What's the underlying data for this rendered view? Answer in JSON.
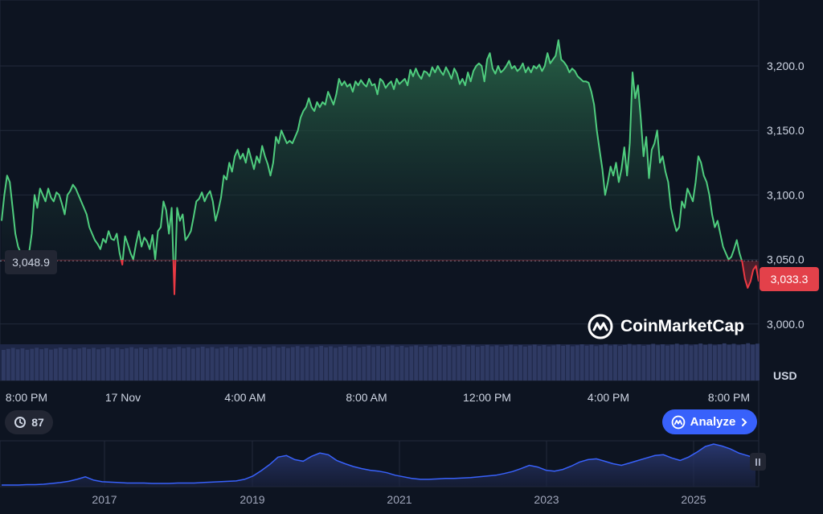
{
  "chart_data": [
    {
      "type": "line",
      "description_axes": "main intraday price",
      "y_axis": {
        "ticks": [
          "3,000.0",
          "3,050.0",
          "3,100.0",
          "3,150.0",
          "3,200.0"
        ],
        "values": [
          3000,
          3050,
          3100,
          3150,
          3200
        ],
        "unit": "USD"
      },
      "x_axis": {
        "ticks": [
          "8:00 PM",
          "17 Nov",
          "4:00 AM",
          "8:00 AM",
          "12:00 PM",
          "4:00 PM",
          "8:00 PM"
        ]
      },
      "baseline": 3048.9,
      "current": 3033.3,
      "series": [
        {
          "values": [
            3080,
            3100,
            3115,
            3110,
            3090,
            3070,
            3060,
            3055,
            3052,
            3050,
            3055,
            3070,
            3100,
            3090,
            3105,
            3100,
            3095,
            3105,
            3098,
            3095,
            3102,
            3100,
            3093,
            3085,
            3100,
            3103,
            3108,
            3105,
            3100,
            3095,
            3090,
            3085,
            3075,
            3070,
            3065,
            3062,
            3058,
            3066,
            3063,
            3072,
            3066,
            3065,
            3070,
            3055,
            3046,
            3068,
            3062,
            3055,
            3050,
            3062,
            3072,
            3060,
            3067,
            3064,
            3058,
            3069,
            3050,
            3072,
            3075,
            3095,
            3088,
            3070,
            3090,
            3023,
            3090,
            3080,
            3085,
            3065,
            3068,
            3072,
            3083,
            3095,
            3097,
            3102,
            3095,
            3100,
            3103,
            3095,
            3080,
            3088,
            3098,
            3115,
            3112,
            3125,
            3118,
            3130,
            3135,
            3128,
            3132,
            3125,
            3136,
            3128,
            3120,
            3130,
            3125,
            3138,
            3130,
            3124,
            3115,
            3125,
            3145,
            3140,
            3150,
            3145,
            3140,
            3142,
            3140,
            3145,
            3150,
            3160,
            3165,
            3168,
            3175,
            3168,
            3165,
            3172,
            3168,
            3172,
            3170,
            3180,
            3175,
            3170,
            3178,
            3190,
            3185,
            3188,
            3184,
            3186,
            3180,
            3188,
            3185,
            3189,
            3186,
            3184,
            3190,
            3185,
            3186,
            3178,
            3190,
            3188,
            3183,
            3186,
            3188,
            3182,
            3190,
            3186,
            3188,
            3190,
            3185,
            3197,
            3192,
            3198,
            3193,
            3190,
            3196,
            3195,
            3192,
            3199,
            3195,
            3200,
            3196,
            3193,
            3199,
            3195,
            3190,
            3198,
            3194,
            3186,
            3190,
            3185,
            3195,
            3188,
            3196,
            3200,
            3202,
            3200,
            3188,
            3205,
            3210,
            3198,
            3194,
            3200,
            3195,
            3197,
            3200,
            3204,
            3198,
            3200,
            3196,
            3198,
            3202,
            3195,
            3199,
            3195,
            3200,
            3198,
            3201,
            3196,
            3200,
            3210,
            3202,
            3205,
            3208,
            3220,
            3205,
            3203,
            3200,
            3195,
            3198,
            3196,
            3192,
            3190,
            3188,
            3188,
            3187,
            3180,
            3170,
            3150,
            3135,
            3120,
            3100,
            3110,
            3122,
            3115,
            3125,
            3110,
            3120,
            3137,
            3115,
            3140,
            3195,
            3175,
            3185,
            3160,
            3130,
            3145,
            3113,
            3135,
            3140,
            3150,
            3125,
            3130,
            3118,
            3110,
            3090,
            3080,
            3072,
            3075,
            3095,
            3090,
            3105,
            3100,
            3095,
            3110,
            3130,
            3125,
            3115,
            3110,
            3100,
            3085,
            3075,
            3080,
            3070,
            3060,
            3055,
            3050,
            3052,
            3058,
            3065,
            3055,
            3048,
            3035,
            3028,
            3033,
            3042,
            3045,
            3033
          ]
        }
      ]
    },
    {
      "type": "area",
      "description_axes": "navigator all-time price",
      "x_axis": {
        "ticks": [
          "2017",
          "2019",
          "2021",
          "2023",
          "2025"
        ]
      },
      "series": [
        {
          "values": [
            0,
            0,
            0,
            1,
            1,
            2,
            4,
            6,
            9,
            14,
            20,
            12,
            8,
            7,
            6,
            5,
            5,
            5,
            4,
            4,
            4,
            5,
            5,
            5,
            6,
            7,
            8,
            9,
            10,
            14,
            22,
            35,
            50,
            68,
            72,
            62,
            58,
            70,
            78,
            74,
            60,
            52,
            45,
            40,
            36,
            34,
            30,
            24,
            20,
            16,
            14,
            14,
            15,
            16,
            16,
            17,
            18,
            20,
            22,
            24,
            28,
            33,
            40,
            48,
            44,
            36,
            34,
            38,
            46,
            56,
            62,
            64,
            58,
            52,
            48,
            54,
            60,
            66,
            72,
            74,
            66,
            60,
            68,
            80,
            94,
            100,
            95,
            88,
            78,
            72,
            66
          ]
        }
      ]
    }
  ],
  "labels": {
    "start_price": "3,048.9",
    "current_price": "3,033.3",
    "currency": "USD",
    "watermark": "CoinMarketCap",
    "history_count": "87",
    "analyze": "Analyze",
    "history_icon": "history-clock-icon",
    "analyze_icon": "cmc-logo-icon",
    "chevron_icon": "chevron-right-icon"
  },
  "colors": {
    "background": "#0d1421",
    "up": "#16c784",
    "up_line": "#4fcd7e",
    "down": "#ea3943",
    "accent": "#3861fb",
    "volume": "#2f3a63"
  }
}
